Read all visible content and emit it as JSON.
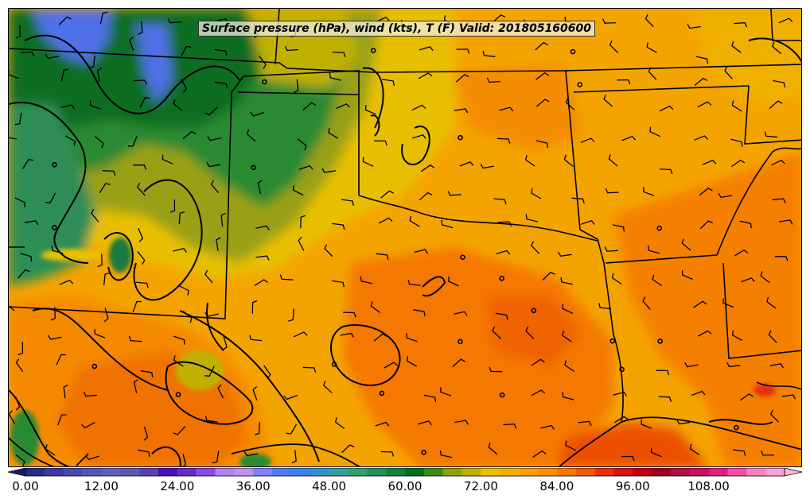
{
  "title": "Surface pressure (hPa), wind (kts), T (F) Valid: 201805160600",
  "colorbar": {
    "min": 0,
    "max": 116,
    "step": 3,
    "tick_labels": [
      "0.00",
      "12.00",
      "24.00",
      "36.00",
      "48.00",
      "60.00",
      "72.00",
      "84.00",
      "96.00",
      "108.00"
    ],
    "tick_values": [
      0,
      12,
      24,
      36,
      48,
      60,
      72,
      84,
      96,
      108
    ],
    "colors": [
      "#2a2a8a",
      "#3a3aa0",
      "#4848b0",
      "#5555b5",
      "#6060b8",
      "#5e5aa8",
      "#5a3fb0",
      "#4b10b5",
      "#6a2ac8",
      "#8c4ae0",
      "#b080f0",
      "#c090f0",
      "#8080ff",
      "#4f7af0",
      "#3a80e8",
      "#3090d0",
      "#30a0a0",
      "#30a070",
      "#209060",
      "#108040",
      "#007020",
      "#3a8a1a",
      "#90a010",
      "#c0b000",
      "#e8c000",
      "#f0b000",
      "#f8a000",
      "#f89000",
      "#f87800",
      "#f05a00",
      "#e83010",
      "#d81010",
      "#c00010",
      "#a00020",
      "#b01040",
      "#c81060",
      "#e02080",
      "#f050a0",
      "#f880c0",
      "#f8a0d8"
    ],
    "extend": "both"
  },
  "map_data": {
    "variable_fill": "Temperature (F)",
    "contours": "Surface pressure (hPa)",
    "barbs": "Wind (kts)"
  }
}
